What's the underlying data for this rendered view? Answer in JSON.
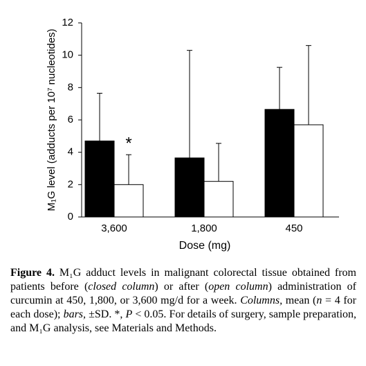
{
  "chart_data": {
    "type": "bar",
    "y_label": "M₁G level (adducts per 10⁷ nucleotides)",
    "x_label": "Dose (mg)",
    "categories": [
      "3,600",
      "1,800",
      "450"
    ],
    "series": [
      {
        "color": "#000000",
        "values": [
          4.7,
          3.65,
          6.65
        ],
        "errors": [
          2.95,
          6.65,
          2.6
        ]
      },
      {
        "color": "#ffffff",
        "values": [
          2.0,
          2.2,
          5.7
        ],
        "errors": [
          1.85,
          2.35,
          4.9
        ]
      }
    ],
    "annotation": "*",
    "ylim": [
      0,
      12
    ],
    "yticks": [
      0,
      2,
      4,
      6,
      8,
      10,
      12
    ],
    "grid": false
  },
  "caption": {
    "label": "Figure 4.",
    "segments": [
      {
        "text": " M₁G adduct levels in malignant colorectal tissue obtained from patients before ("
      },
      {
        "text": "closed column",
        "style": "italic"
      },
      {
        "text": ") or after ("
      },
      {
        "text": "open column",
        "style": "italic"
      },
      {
        "text": ") administration of curcumin at 450, 1,800, or 3,600 mg/d for a week. "
      },
      {
        "text": "Columns,",
        "style": "italic"
      },
      {
        "text": " mean ("
      },
      {
        "text": "n",
        "style": "italic"
      },
      {
        "text": " = 4 for each dose); "
      },
      {
        "text": "bars,",
        "style": "italic"
      },
      {
        "text": " ±SD. *, "
      },
      {
        "text": "P",
        "style": "italic"
      },
      {
        "text": " < 0.05. For details of surgery, sample preparation, and M₁G analysis, see Materials and Methods."
      }
    ]
  }
}
